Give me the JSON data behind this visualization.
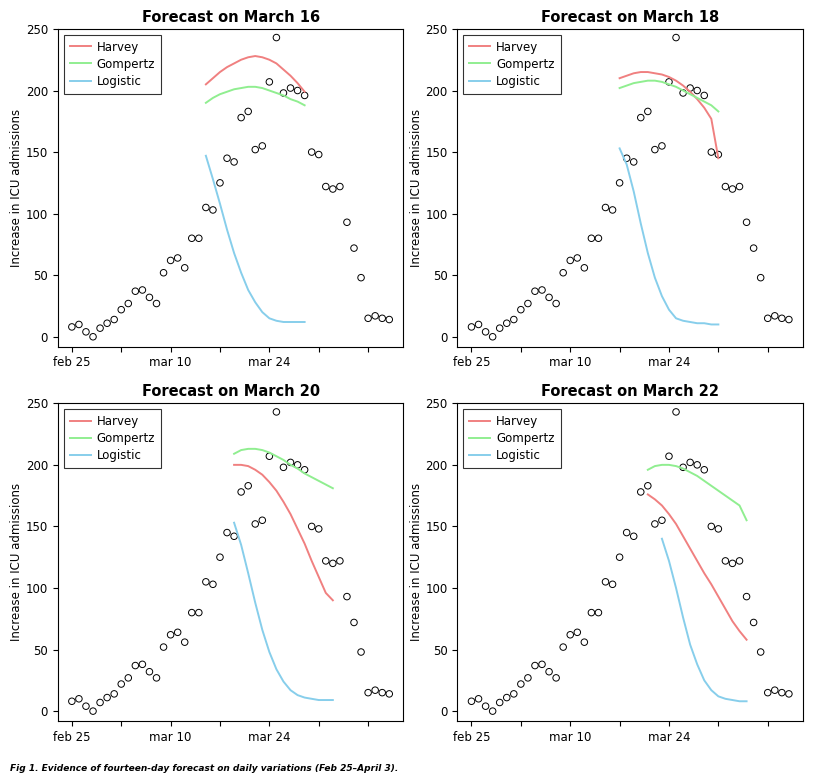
{
  "titles": [
    "Forecast on March 16",
    "Forecast on March 18",
    "Forecast on March 20",
    "Forecast on March 22"
  ],
  "ylabel": "Increase in ICU admissions",
  "xtick_labels": [
    "feb 25",
    "mar 10",
    "mar 24"
  ],
  "xtick_days": [
    0,
    14,
    28
  ],
  "ylim": [
    0,
    250
  ],
  "yticks": [
    0,
    50,
    100,
    150,
    200,
    250
  ],
  "legend_labels": [
    "Harvey",
    "Gompertz",
    "Logistic"
  ],
  "harvey_color": "#F08080",
  "gompertz_color": "#90EE90",
  "logistic_color": "#87CEEB",
  "fig_caption": "Fig 1. Evidence of fourteen-day forecast on daily variations (Feb 25–April 3).",
  "scatter_points": [
    [
      0,
      8
    ],
    [
      1,
      10
    ],
    [
      2,
      4
    ],
    [
      3,
      0
    ],
    [
      4,
      7
    ],
    [
      5,
      11
    ],
    [
      6,
      14
    ],
    [
      7,
      22
    ],
    [
      8,
      27
    ],
    [
      9,
      37
    ],
    [
      10,
      38
    ],
    [
      11,
      32
    ],
    [
      12,
      27
    ],
    [
      13,
      52
    ],
    [
      14,
      62
    ],
    [
      15,
      64
    ],
    [
      16,
      56
    ],
    [
      17,
      80
    ],
    [
      18,
      80
    ],
    [
      19,
      105
    ],
    [
      20,
      103
    ],
    [
      21,
      125
    ],
    [
      22,
      145
    ],
    [
      23,
      142
    ],
    [
      24,
      178
    ],
    [
      25,
      183
    ],
    [
      26,
      152
    ],
    [
      27,
      155
    ],
    [
      28,
      207
    ],
    [
      29,
      243
    ],
    [
      30,
      198
    ],
    [
      31,
      202
    ],
    [
      32,
      200
    ],
    [
      33,
      196
    ],
    [
      34,
      150
    ],
    [
      35,
      148
    ],
    [
      36,
      122
    ],
    [
      37,
      120
    ],
    [
      38,
      122
    ],
    [
      39,
      93
    ],
    [
      40,
      72
    ],
    [
      41,
      48
    ],
    [
      42,
      15
    ],
    [
      43,
      17
    ],
    [
      44,
      15
    ],
    [
      45,
      14
    ]
  ],
  "curves": {
    "march16": {
      "harvey": {
        "x": [
          19,
          20,
          21,
          22,
          23,
          24,
          25,
          26,
          27,
          28,
          29,
          30,
          31,
          32,
          33
        ],
        "y": [
          205,
          210,
          215,
          219,
          222,
          225,
          227,
          228,
          227,
          225,
          222,
          217,
          212,
          206,
          199
        ]
      },
      "gompertz": {
        "x": [
          19,
          20,
          21,
          22,
          23,
          24,
          25,
          26,
          27,
          28,
          29,
          30,
          31,
          32,
          33
        ],
        "y": [
          190,
          194,
          197,
          199,
          201,
          202,
          203,
          203,
          202,
          200,
          198,
          196,
          193,
          191,
          188
        ]
      },
      "logistic": {
        "x": [
          19,
          20,
          21,
          22,
          23,
          24,
          25,
          26,
          27,
          28,
          29,
          30,
          31,
          32,
          33
        ],
        "y": [
          147,
          128,
          108,
          87,
          68,
          52,
          38,
          28,
          20,
          15,
          13,
          12,
          12,
          12,
          12
        ]
      }
    },
    "march18": {
      "harvey": {
        "x": [
          21,
          22,
          23,
          24,
          25,
          26,
          27,
          28,
          29,
          30,
          31,
          32,
          33,
          34,
          35
        ],
        "y": [
          210,
          212,
          214,
          215,
          215,
          214,
          213,
          211,
          208,
          204,
          199,
          193,
          186,
          177,
          145
        ]
      },
      "gompertz": {
        "x": [
          21,
          22,
          23,
          24,
          25,
          26,
          27,
          28,
          29,
          30,
          31,
          32,
          33,
          34,
          35
        ],
        "y": [
          202,
          204,
          206,
          207,
          208,
          208,
          207,
          205,
          203,
          200,
          197,
          194,
          191,
          188,
          183
        ]
      },
      "logistic": {
        "x": [
          21,
          22,
          23,
          24,
          25,
          26,
          27,
          28,
          29,
          30,
          31,
          32,
          33,
          34,
          35
        ],
        "y": [
          153,
          140,
          118,
          92,
          68,
          48,
          33,
          22,
          15,
          13,
          12,
          11,
          11,
          10,
          10
        ]
      }
    },
    "march20": {
      "harvey": {
        "x": [
          23,
          24,
          25,
          26,
          27,
          28,
          29,
          30,
          31,
          32,
          33,
          34,
          35,
          36,
          37
        ],
        "y": [
          200,
          200,
          199,
          196,
          192,
          186,
          179,
          170,
          160,
          148,
          136,
          122,
          109,
          96,
          90
        ]
      },
      "gompertz": {
        "x": [
          23,
          24,
          25,
          26,
          27,
          28,
          29,
          30,
          31,
          32,
          33,
          34,
          35,
          36,
          37
        ],
        "y": [
          209,
          212,
          213,
          213,
          212,
          210,
          207,
          204,
          200,
          197,
          193,
          190,
          187,
          184,
          181
        ]
      },
      "logistic": {
        "x": [
          23,
          24,
          25,
          26,
          27,
          28,
          29,
          30,
          31,
          32,
          33,
          34,
          35,
          36,
          37
        ],
        "y": [
          153,
          135,
          112,
          88,
          66,
          48,
          34,
          24,
          17,
          13,
          11,
          10,
          9,
          9,
          9
        ]
      }
    },
    "march22": {
      "harvey": {
        "x": [
          25,
          26,
          27,
          28,
          29,
          30,
          31,
          32,
          33,
          34,
          35,
          36,
          37,
          38,
          39
        ],
        "y": [
          176,
          172,
          167,
          160,
          152,
          142,
          132,
          122,
          112,
          103,
          93,
          83,
          73,
          65,
          58
        ]
      },
      "gompertz": {
        "x": [
          25,
          26,
          27,
          28,
          29,
          30,
          31,
          32,
          33,
          34,
          35,
          36,
          37,
          38,
          39
        ],
        "y": [
          196,
          199,
          200,
          200,
          199,
          197,
          194,
          191,
          187,
          183,
          179,
          175,
          171,
          167,
          155
        ]
      },
      "logistic": {
        "x": [
          27,
          28,
          29,
          30,
          31,
          32,
          33,
          34,
          35,
          36,
          37,
          38,
          39
        ],
        "y": [
          140,
          122,
          100,
          76,
          54,
          38,
          25,
          17,
          12,
          10,
          9,
          8,
          8
        ]
      }
    }
  }
}
